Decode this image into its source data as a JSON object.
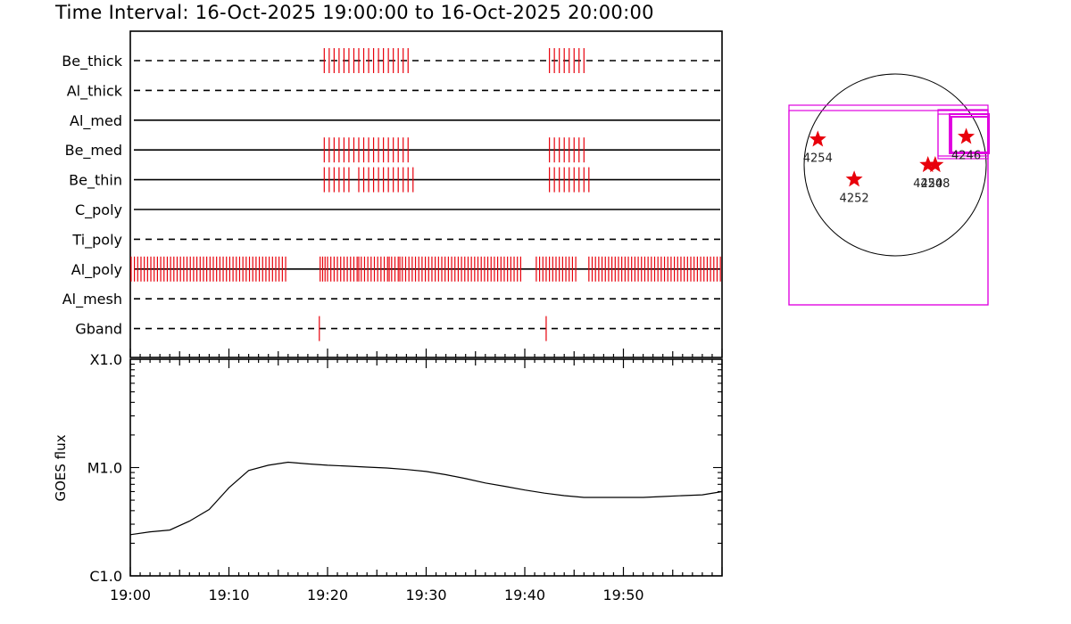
{
  "title": "Time Interval: 16-Oct-2025 19:00:00 to 16-Oct-2025 20:00:00",
  "colors": {
    "event": "#e8000b",
    "box": "#e000e0",
    "axis": "#000000",
    "curve": "#000000"
  },
  "chart_data": [
    {
      "type": "timeline",
      "x_range": [
        "19:00",
        "20:00"
      ],
      "rows": [
        {
          "label": "Be_thick",
          "style": "dashed",
          "events": [
            "19:19:40",
            "19:20:10",
            "19:20:40",
            "19:21:10",
            "19:21:40",
            "19:22:10",
            "19:22:40",
            "19:23:10",
            "19:23:40",
            "19:24:10",
            "19:24:40",
            "19:25:10",
            "19:25:40",
            "19:26:10",
            "19:26:40",
            "19:27:10",
            "19:27:40",
            "19:28:10",
            "19:42:30",
            "19:43:00",
            "19:43:30",
            "19:44:00",
            "19:44:30",
            "19:45:00",
            "19:45:30",
            "19:46:00"
          ]
        },
        {
          "label": "Al_thick",
          "style": "dashed",
          "events": []
        },
        {
          "label": "Al_med",
          "style": "solid",
          "events": []
        },
        {
          "label": "Be_med",
          "style": "solid",
          "events": [
            "19:19:40",
            "19:20:10",
            "19:20:40",
            "19:21:10",
            "19:21:40",
            "19:22:10",
            "19:22:40",
            "19:23:10",
            "19:23:40",
            "19:24:10",
            "19:24:40",
            "19:25:10",
            "19:25:40",
            "19:26:10",
            "19:26:40",
            "19:27:10",
            "19:27:40",
            "19:28:10",
            "19:42:30",
            "19:43:00",
            "19:43:30",
            "19:44:00",
            "19:44:30",
            "19:45:00",
            "19:45:30",
            "19:46:00"
          ]
        },
        {
          "label": "Be_thin",
          "style": "solid",
          "events": [
            "19:19:40",
            "19:20:10",
            "19:20:40",
            "19:21:10",
            "19:21:40",
            "19:22:10",
            "19:23:10",
            "19:23:40",
            "19:24:10",
            "19:24:40",
            "19:25:10",
            "19:25:40",
            "19:26:10",
            "19:26:40",
            "19:27:10",
            "19:27:40",
            "19:28:10",
            "19:28:40",
            "19:42:30",
            "19:43:00",
            "19:43:30",
            "19:44:00",
            "19:44:30",
            "19:45:00",
            "19:45:30",
            "19:46:00",
            "19:46:30"
          ]
        },
        {
          "label": "C_poly",
          "style": "solid",
          "events": []
        },
        {
          "label": "Ti_poly",
          "style": "dashed",
          "events": []
        },
        {
          "label": "Al_poly",
          "style": "solid",
          "events": [
            "19:00:05",
            "19:00:25",
            "19:00:45",
            "19:01:05",
            "19:01:25",
            "19:01:45",
            "19:02:05",
            "19:02:25",
            "19:02:45",
            "19:03:05",
            "19:03:25",
            "19:03:45",
            "19:04:05",
            "19:04:25",
            "19:04:45",
            "19:05:05",
            "19:05:25",
            "19:05:45",
            "19:06:05",
            "19:06:25",
            "19:06:45",
            "19:07:05",
            "19:07:25",
            "19:07:45",
            "19:08:05",
            "19:08:25",
            "19:08:45",
            "19:09:05",
            "19:09:25",
            "19:09:45",
            "19:10:05",
            "19:10:25",
            "19:10:45",
            "19:11:05",
            "19:11:25",
            "19:11:45",
            "19:12:05",
            "19:12:25",
            "19:12:45",
            "19:13:05",
            "19:13:25",
            "19:13:45",
            "19:14:05",
            "19:14:25",
            "19:14:45",
            "19:15:05",
            "19:15:25",
            "19:15:45",
            "19:19:15",
            "19:19:30",
            "19:19:45",
            "19:20:00",
            "19:20:20",
            "19:20:40",
            "19:21:00",
            "19:21:20",
            "19:21:40",
            "19:22:00",
            "19:22:20",
            "19:22:40",
            "19:23:00",
            "19:23:10",
            "19:23:25",
            "19:23:45",
            "19:24:05",
            "19:24:25",
            "19:24:45",
            "19:25:05",
            "19:25:25",
            "19:25:45",
            "19:26:05",
            "19:26:15",
            "19:26:30",
            "19:26:50",
            "19:27:10",
            "19:27:20",
            "19:27:35",
            "19:27:55",
            "19:28:15",
            "19:28:35",
            "19:28:55",
            "19:29:15",
            "19:29:35",
            "19:29:55",
            "19:30:15",
            "19:30:35",
            "19:30:55",
            "19:31:15",
            "19:31:35",
            "19:31:55",
            "19:32:15",
            "19:32:35",
            "19:32:55",
            "19:33:15",
            "19:33:35",
            "19:33:55",
            "19:34:15",
            "19:34:35",
            "19:34:55",
            "19:35:15",
            "19:35:35",
            "19:35:55",
            "19:36:15",
            "19:36:35",
            "19:36:55",
            "19:37:15",
            "19:37:35",
            "19:37:55",
            "19:38:15",
            "19:38:35",
            "19:38:55",
            "19:39:15",
            "19:39:35",
            "19:41:10",
            "19:41:30",
            "19:41:50",
            "19:42:10",
            "19:42:30",
            "19:42:50",
            "19:43:10",
            "19:43:30",
            "19:43:50",
            "19:44:10",
            "19:44:30",
            "19:44:50",
            "19:45:10",
            "19:46:30",
            "19:46:50",
            "19:47:10",
            "19:47:30",
            "19:47:50",
            "19:48:10",
            "19:48:30",
            "19:48:50",
            "19:49:10",
            "19:49:30",
            "19:49:50",
            "19:50:10",
            "19:50:30",
            "19:50:50",
            "19:51:10",
            "19:51:30",
            "19:51:50",
            "19:52:10",
            "19:52:30",
            "19:52:50",
            "19:53:10",
            "19:53:30",
            "19:53:50",
            "19:54:10",
            "19:54:30",
            "19:54:50",
            "19:55:10",
            "19:55:30",
            "19:55:50",
            "19:56:10",
            "19:56:30",
            "19:56:50",
            "19:57:10",
            "19:57:30",
            "19:57:50",
            "19:58:10",
            "19:58:30",
            "19:58:50",
            "19:59:10",
            "19:59:30",
            "19:59:50"
          ]
        },
        {
          "label": "Al_mesh",
          "style": "dashed",
          "events": []
        },
        {
          "label": "Gband",
          "style": "dashed",
          "events": [
            "19:19:10",
            "19:42:10"
          ]
        }
      ]
    },
    {
      "type": "line",
      "ylabel": "GOES flux",
      "yscale": "log",
      "ytick_labels": [
        "C1.0",
        "M1.0",
        "X1.0"
      ],
      "ytick_values": [
        1e-06,
        1e-05,
        0.0001
      ],
      "ylim": [
        1e-06,
        0.0001
      ],
      "x_range": [
        "19:00",
        "20:00"
      ],
      "xtick_labels": [
        "19:00",
        "19:10",
        "19:20",
        "19:30",
        "19:40",
        "19:50"
      ],
      "x": [
        "19:00",
        "19:02",
        "19:04",
        "19:06",
        "19:08",
        "19:10",
        "19:12",
        "19:14",
        "19:16",
        "19:18",
        "19:20",
        "19:22",
        "19:24",
        "19:26",
        "19:28",
        "19:30",
        "19:32",
        "19:34",
        "19:36",
        "19:38",
        "19:40",
        "19:42",
        "19:44",
        "19:46",
        "19:48",
        "19:50",
        "19:52",
        "19:54",
        "19:56",
        "19:58",
        "20:00"
      ],
      "y": [
        2.4e-06,
        2.55e-06,
        2.65e-06,
        3.2e-06,
        4.1e-06,
        6.5e-06,
        9.4e-06,
        1.05e-05,
        1.12e-05,
        1.08e-05,
        1.05e-05,
        1.03e-05,
        1.01e-05,
        9.9e-06,
        9.6e-06,
        9.2e-06,
        8.6e-06,
        7.9e-06,
        7.2e-06,
        6.7e-06,
        6.2e-06,
        5.8e-06,
        5.5e-06,
        5.3e-06,
        5.3e-06,
        5.3e-06,
        5.3e-06,
        5.4e-06,
        5.5e-06,
        5.6e-06,
        6e-06
      ]
    },
    {
      "type": "scatter",
      "subtype": "solar-disk-map",
      "points": [
        {
          "label": "4254",
          "x": -0.85,
          "y": 0.28
        },
        {
          "label": "4252",
          "x": -0.45,
          "y": -0.16
        },
        {
          "label": "4250",
          "x": 0.36,
          "y": 0.0
        },
        {
          "label": "4248",
          "x": 0.44,
          "y": 0.0
        },
        {
          "label": "4246",
          "x": 0.78,
          "y": 0.31
        }
      ]
    }
  ]
}
